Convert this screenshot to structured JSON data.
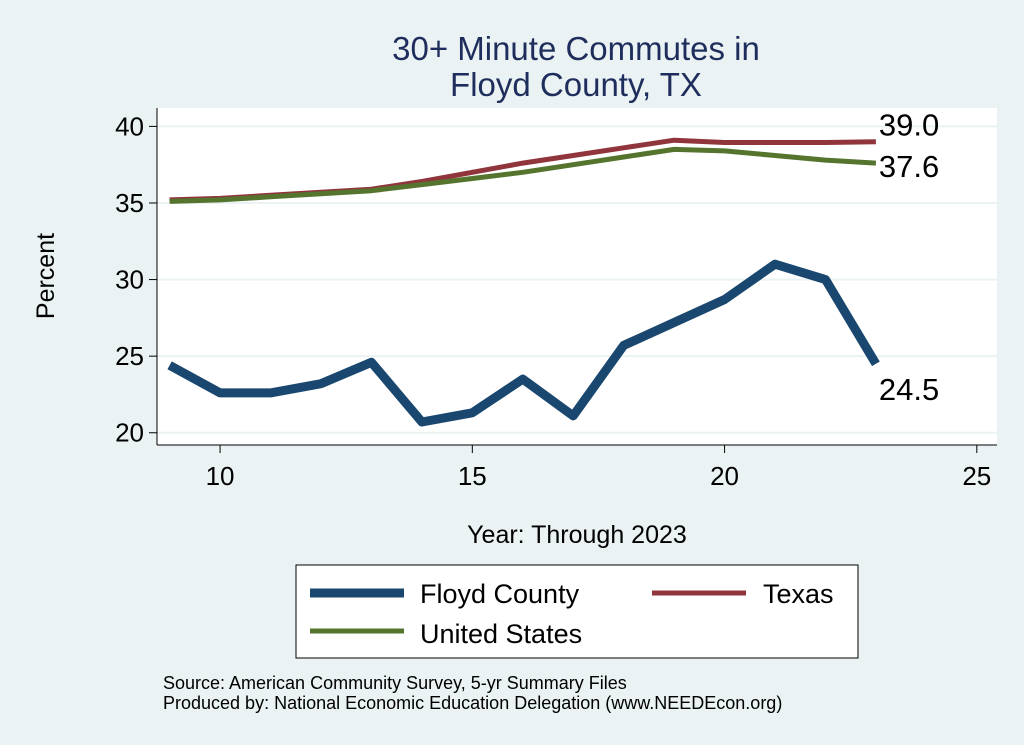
{
  "chart_data": {
    "type": "line",
    "title_lines": [
      "30+ Minute Commutes in",
      "Floyd County, TX"
    ],
    "xlabel": "Year: Through 2023",
    "ylabel": "Percent",
    "xlim": [
      8.75,
      25.4
    ],
    "ylim": [
      19.2,
      41.2
    ],
    "x_ticks": [
      10,
      15,
      20,
      25
    ],
    "y_ticks": [
      20,
      25,
      30,
      35,
      40
    ],
    "grid": true,
    "legend_position": "bottom",
    "series": [
      {
        "name": "Floyd County",
        "color": "#1a476f",
        "x": [
          9,
          10,
          11,
          12,
          13,
          14,
          15,
          16,
          17,
          18,
          19,
          20,
          21,
          22,
          23
        ],
        "values": [
          24.4,
          22.6,
          22.6,
          23.2,
          24.6,
          20.7,
          21.3,
          23.5,
          21.1,
          25.7,
          27.2,
          28.7,
          31.0,
          30.0,
          24.5
        ],
        "end_label": "24.5"
      },
      {
        "name": "Texas",
        "color": "#90353b",
        "x": [
          9,
          10,
          11,
          12,
          13,
          14,
          15,
          16,
          17,
          18,
          19,
          20,
          21,
          22,
          23
        ],
        "values": [
          35.2,
          35.3,
          35.5,
          35.7,
          35.9,
          36.4,
          37.0,
          37.6,
          38.1,
          38.6,
          39.1,
          38.95,
          38.95,
          38.95,
          39.0
        ],
        "end_label": "39.0"
      },
      {
        "name": "United States",
        "color": "#55752f",
        "x": [
          9,
          10,
          11,
          12,
          13,
          14,
          15,
          16,
          17,
          18,
          19,
          20,
          21,
          22,
          23
        ],
        "values": [
          35.1,
          35.2,
          35.4,
          35.6,
          35.8,
          36.2,
          36.6,
          37.0,
          37.5,
          38.0,
          38.5,
          38.4,
          38.1,
          37.8,
          37.6
        ],
        "end_label": "37.6"
      }
    ],
    "legend": {
      "items": [
        "Floyd County",
        "Texas",
        "United States"
      ]
    },
    "notes": [
      "Source: American Community Survey, 5-yr Summary Files",
      "Produced by: National Economic Education Delegation (www.NEEDEcon.org)"
    ]
  },
  "colors": {
    "background": "#eaf2f3",
    "plot_background": "#ffffff",
    "title": "#1e2d5c",
    "grid": "#eaf2f3"
  }
}
